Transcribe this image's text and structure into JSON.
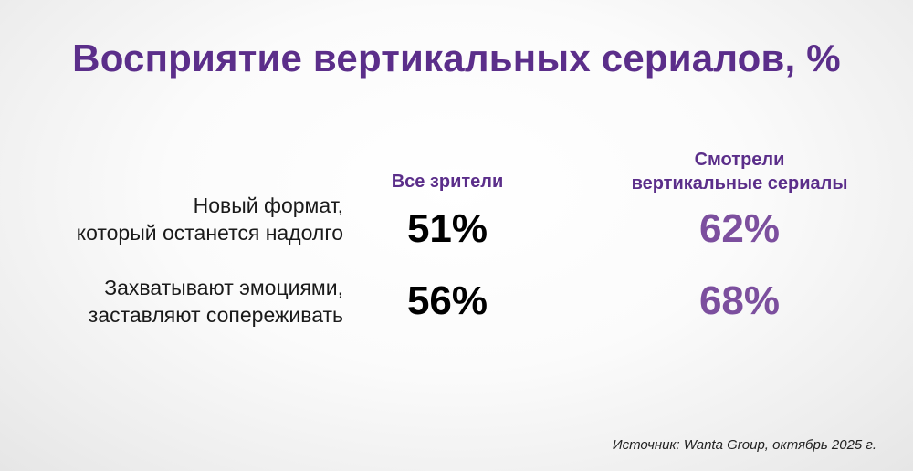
{
  "colors": {
    "title": "#5b2e8a",
    "header": "#5b2e8a",
    "value_all": "#000000",
    "value_watched": "#7c4f9e"
  },
  "chart_data": {
    "type": "table",
    "title": "Восприятие вертикальных сериалов, %",
    "columns": [
      "Все зрители",
      "Смотрели вертикальные сериалы"
    ],
    "column_header_lines": [
      [
        "Все зрители"
      ],
      [
        "Смотрели",
        "вертикальные сериалы"
      ]
    ],
    "rows": [
      {
        "label_lines": [
          "Новый формат,",
          "который останется надолго"
        ],
        "values": [
          51,
          62
        ],
        "value_labels": [
          "51%",
          "62%"
        ]
      },
      {
        "label_lines": [
          "Захватывают эмоциями,",
          "заставляют сопереживать"
        ],
        "values": [
          56,
          68
        ],
        "value_labels": [
          "56%",
          "68%"
        ]
      }
    ],
    "source": "Источник: Wanta Group,  октябрь 2025 г."
  }
}
